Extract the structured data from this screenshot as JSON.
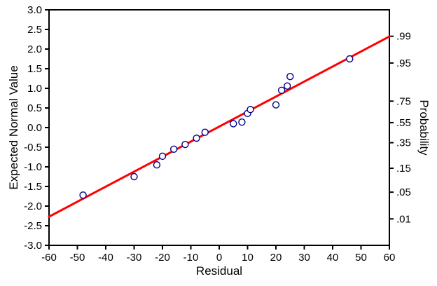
{
  "chart_data": {
    "type": "scatter",
    "title": "",
    "xlabel": "Residual",
    "ylabel_left": "Expected Normal Value",
    "ylabel_right": "Probability",
    "xlim": [
      -60,
      60
    ],
    "ylim": [
      -3.0,
      3.0
    ],
    "grid": "off",
    "legend": "none",
    "x_ticks": [
      {
        "label": "-60",
        "value": -60
      },
      {
        "label": "-50",
        "value": -50
      },
      {
        "label": "-40",
        "value": -40
      },
      {
        "label": "-30",
        "value": -30
      },
      {
        "label": "-20",
        "value": -20
      },
      {
        "label": "-10",
        "value": -10
      },
      {
        "label": "0",
        "value": 0
      },
      {
        "label": "10",
        "value": 10
      },
      {
        "label": "20",
        "value": 20
      },
      {
        "label": "30",
        "value": 30
      },
      {
        "label": "40",
        "value": 40
      },
      {
        "label": "50",
        "value": 50
      },
      {
        "label": "60",
        "value": 60
      }
    ],
    "y_ticks_left": [
      {
        "label": "3.0",
        "value": 3.0
      },
      {
        "label": "2.5",
        "value": 2.5
      },
      {
        "label": "2.0",
        "value": 2.0
      },
      {
        "label": "1.5",
        "value": 1.5
      },
      {
        "label": "1.0",
        "value": 1.0
      },
      {
        "label": "0.5",
        "value": 0.5
      },
      {
        "label": "0.0",
        "value": 0.0
      },
      {
        "label": "-0.5",
        "value": -0.5
      },
      {
        "label": "-1.0",
        "value": -1.0
      },
      {
        "label": "-1.5",
        "value": -1.5
      },
      {
        "label": "-2.0",
        "value": -2.0
      },
      {
        "label": "-2.5",
        "value": -2.5
      },
      {
        "label": "-3.0",
        "value": -3.0
      }
    ],
    "y_ticks_right": [
      {
        "label": ".99",
        "value": 2.326
      },
      {
        "label": ".95",
        "value": 1.645
      },
      {
        "label": ".75",
        "value": 0.674
      },
      {
        "label": ".55",
        "value": 0.126
      },
      {
        "label": ".35",
        "value": -0.385
      },
      {
        "label": ".15",
        "value": -1.036
      },
      {
        "label": ".05",
        "value": -1.645
      },
      {
        "label": ".01",
        "value": -2.326
      }
    ],
    "points": [
      [
        -48,
        -1.72
      ],
      [
        -30,
        -1.25
      ],
      [
        -22,
        -0.95
      ],
      [
        -20,
        -0.73
      ],
      [
        -16,
        -0.55
      ],
      [
        -12,
        -0.43
      ],
      [
        -8,
        -0.27
      ],
      [
        -5,
        -0.12
      ],
      [
        5,
        0.1
      ],
      [
        8,
        0.14
      ],
      [
        10,
        0.36
      ],
      [
        11,
        0.46
      ],
      [
        20,
        0.58
      ],
      [
        22,
        0.95
      ],
      [
        24,
        1.06
      ],
      [
        25,
        1.3
      ],
      [
        46,
        1.75
      ]
    ],
    "fit_line": {
      "x0": -60,
      "y0": -2.27,
      "x1": 60,
      "y1": 2.32
    },
    "colors": {
      "line": "#ff0000",
      "point_stroke": "#00008b",
      "point_fill": "#ffffff",
      "axis": "#000000",
      "background": "#ffffff"
    }
  }
}
